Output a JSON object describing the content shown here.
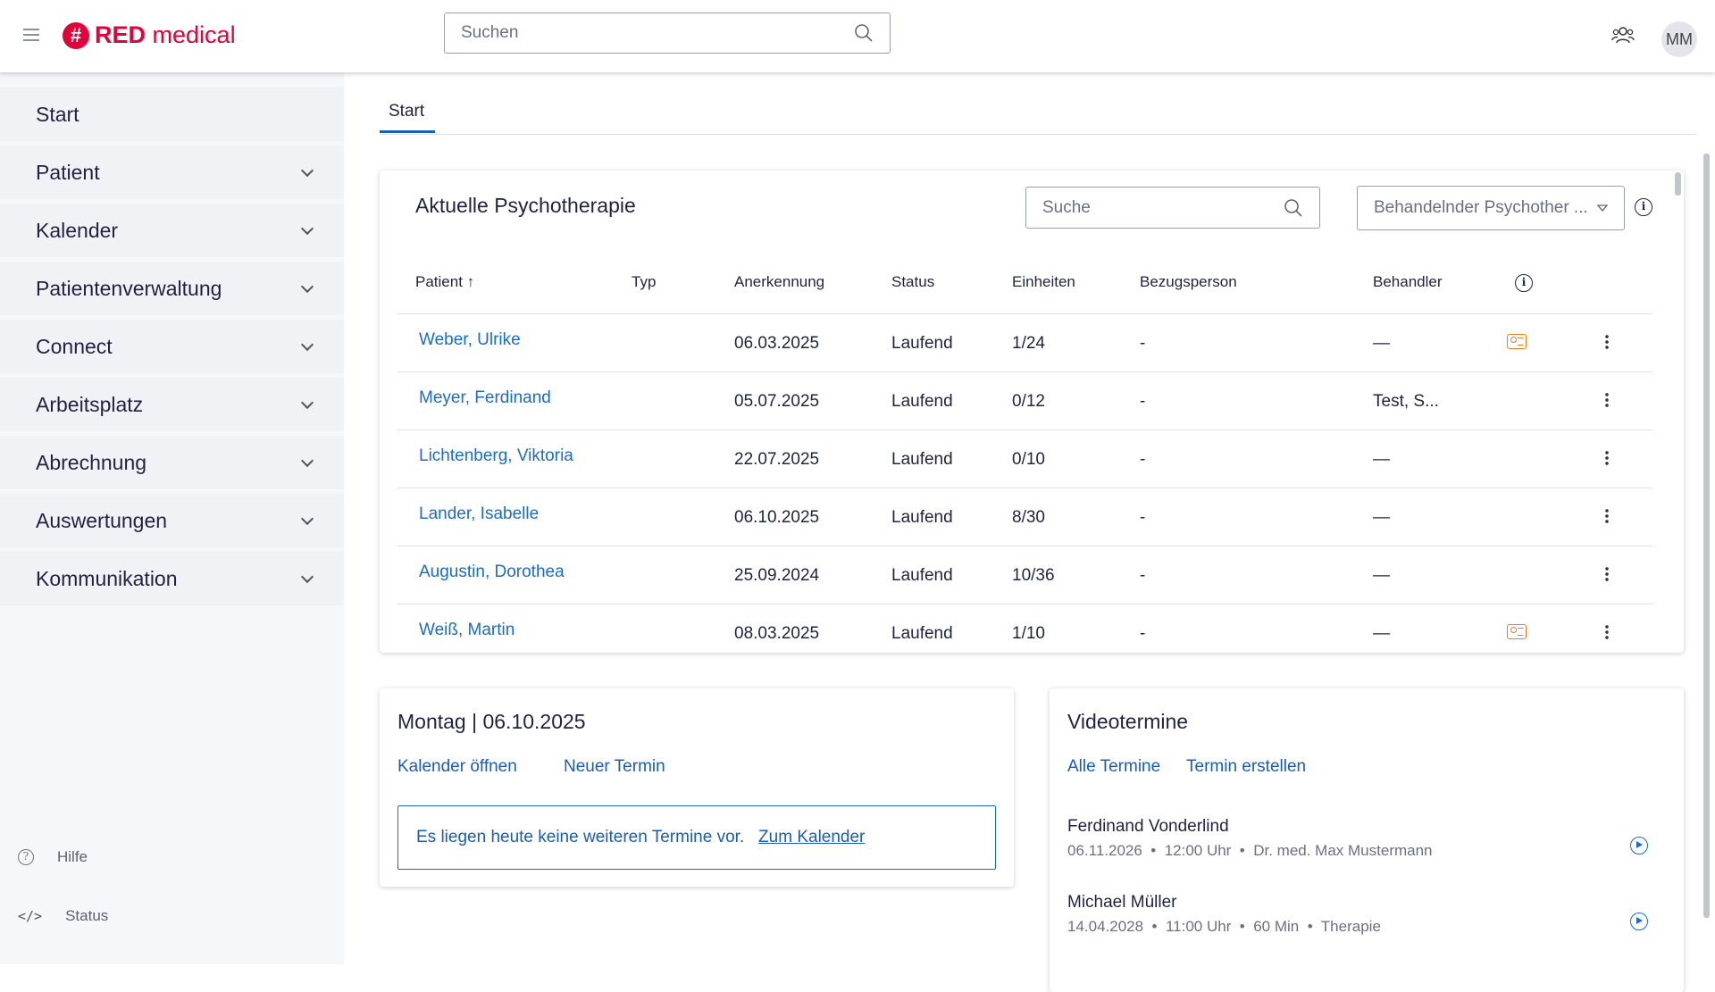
{
  "header": {
    "brand_strong": "RED",
    "brand_light": "medical",
    "search_placeholder": "Suchen",
    "avatar": "MM"
  },
  "sidebar": {
    "items": [
      {
        "label": "Start"
      },
      {
        "label": "Patient"
      },
      {
        "label": "Kalender"
      },
      {
        "label": "Patientenverwaltung"
      },
      {
        "label": "Connect"
      },
      {
        "label": "Arbeitsplatz"
      },
      {
        "label": "Abrechnung"
      },
      {
        "label": "Auswertungen"
      },
      {
        "label": "Kommunikation"
      }
    ],
    "help": "Hilfe",
    "status": "Status"
  },
  "tabs": [
    {
      "label": "Start"
    }
  ],
  "therapy": {
    "title": "Aktuelle Psychotherapie",
    "search_placeholder": "Suche",
    "filter_placeholder": "Behandelnder Psychother ...",
    "columns": [
      "Patient",
      "Typ",
      "Anerkennung",
      "Status",
      "Einheiten",
      "Bezugsperson",
      "Behandler"
    ],
    "rows": [
      {
        "patient": "Weber, Ulrike",
        "typ": "",
        "anerkennung": "06.03.2025",
        "status": "Laufend",
        "einheiten": "1/24",
        "bezugsperson": "-",
        "behandler": "—",
        "card": true
      },
      {
        "patient": "Meyer, Ferdinand",
        "typ": "",
        "anerkennung": "05.07.2025",
        "status": "Laufend",
        "einheiten": "0/12",
        "bezugsperson": "-",
        "behandler": "Test, S...",
        "card": false
      },
      {
        "patient": "Lichtenberg, Viktoria",
        "typ": "",
        "anerkennung": "22.07.2025",
        "status": "Laufend",
        "einheiten": "0/10",
        "bezugsperson": "-",
        "behandler": "—",
        "card": false
      },
      {
        "patient": "Lander, Isabelle",
        "typ": "",
        "anerkennung": "06.10.2025",
        "status": "Laufend",
        "einheiten": "8/30",
        "bezugsperson": "-",
        "behandler": "—",
        "card": false
      },
      {
        "patient": "Augustin, Dorothea",
        "typ": "",
        "anerkennung": "25.09.2024",
        "status": "Laufend",
        "einheiten": "10/36",
        "bezugsperson": "-",
        "behandler": "—",
        "card": false
      },
      {
        "patient": "Weiß, Martin",
        "typ": "",
        "anerkennung": "08.03.2025",
        "status": "Laufend",
        "einheiten": "1/10",
        "bezugsperson": "-",
        "behandler": "—",
        "card": true
      }
    ]
  },
  "calendar": {
    "title": "Montag | 06.10.2025",
    "open": "Kalender öffnen",
    "new": "Neuer Termin",
    "notice": "Es liegen heute keine weiteren Termine vor.",
    "notice_link": "Zum Kalender"
  },
  "video": {
    "title": "Videotermine",
    "all": "Alle Termine",
    "create": "Termin erstellen",
    "items": [
      {
        "name": "Ferdinand Vonderlind",
        "meta": [
          "06.11.2026",
          "12:00 Uhr",
          "Dr. med. Max Mustermann"
        ]
      },
      {
        "name": "Michael Müller",
        "meta": [
          "14.04.2028",
          "11:00 Uhr",
          "60 Min",
          "Therapie"
        ]
      }
    ]
  },
  "colors": {
    "brand": "#e4003b",
    "link": "#1a6cc8",
    "accent": "#1a5cb8",
    "card_icon": "#f07b22"
  }
}
